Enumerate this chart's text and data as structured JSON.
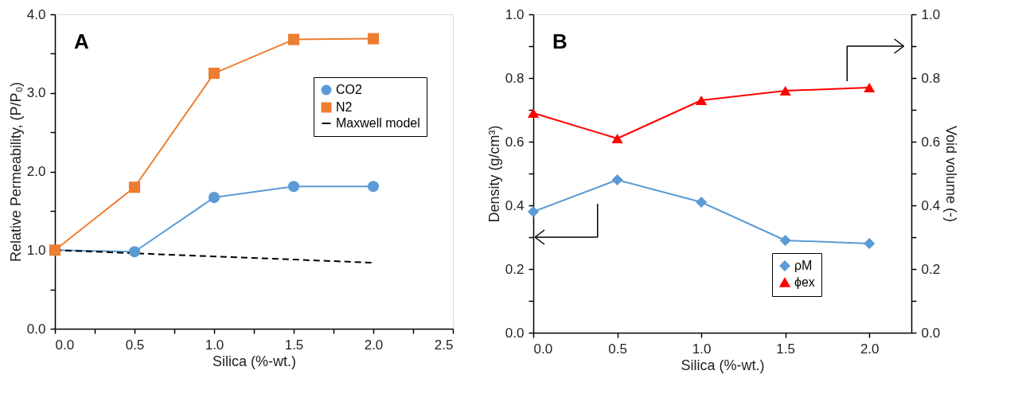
{
  "chart_data": [
    {
      "type": "line",
      "xlabel": "Silica (%-wt.)",
      "ylabel": "Relative Permeability, (P/P₀)",
      "annotations": [
        "A"
      ],
      "xlim": [
        0,
        2.5
      ],
      "xticks": [
        {
          "value": 0,
          "label": "0.0"
        },
        {
          "value": 0.25,
          "label": null
        },
        {
          "value": 0.5,
          "label": "0.5"
        },
        {
          "value": 0.75,
          "label": null
        },
        {
          "value": 1,
          "label": "1.0"
        },
        {
          "value": 1.25,
          "label": null
        },
        {
          "value": 1.5,
          "label": "1.5"
        },
        {
          "value": 1.75,
          "label": null
        },
        {
          "value": 2,
          "label": "2.0"
        },
        {
          "value": 2.25,
          "label": null
        },
        {
          "value": 2.5,
          "label": "2.5"
        }
      ],
      "ylim": [
        0,
        4
      ],
      "yticks": [
        {
          "value": 0,
          "label": "0.0"
        },
        {
          "value": 0.5,
          "label": null
        },
        {
          "value": 1,
          "label": "1.0"
        },
        {
          "value": 1.5,
          "label": null
        },
        {
          "value": 2,
          "label": "2.0"
        },
        {
          "value": 2.5,
          "label": null
        },
        {
          "value": 3,
          "label": "3.0"
        },
        {
          "value": 3.5,
          "label": null
        },
        {
          "value": 4,
          "label": "4.0"
        }
      ],
      "x": [
        0,
        0.5,
        1,
        1.5,
        2
      ],
      "grid": false,
      "legend": "top right",
      "series": [
        {
          "name": "CO2",
          "color": "#5b9bd5",
          "marker": "circle",
          "line_style": "solid",
          "values": [
            1.0,
            0.98,
            1.67,
            1.81,
            1.81
          ]
        },
        {
          "name": "N2",
          "color": "#ed7d31",
          "marker": "square",
          "line_style": "solid",
          "values": [
            1.0,
            1.8,
            3.25,
            3.68,
            3.69
          ]
        },
        {
          "name": "Maxwell model",
          "color": "#000000",
          "marker": "none",
          "line_style": "dashed",
          "values": [
            1.0,
            0.96,
            0.92,
            0.88,
            0.84
          ]
        }
      ]
    },
    {
      "type": "line",
      "xlabel": "Silica (%-wt.)",
      "ylabel": "Density (g/cm³)",
      "y2label": "Void volume (-)",
      "annotations": [
        "B"
      ],
      "xlim": [
        0,
        2.25
      ],
      "xticks": [
        {
          "value": 0,
          "label": "0.0"
        },
        {
          "value": 0.5,
          "label": "0.5"
        },
        {
          "value": 1,
          "label": "1.0"
        },
        {
          "value": 1.5,
          "label": "1.5"
        },
        {
          "value": 2,
          "label": "2.0"
        }
      ],
      "ylim": [
        0,
        1
      ],
      "yticks": [
        {
          "value": 0,
          "label": "0.0"
        },
        {
          "value": 0.1,
          "label": null
        },
        {
          "value": 0.2,
          "label": "0.2"
        },
        {
          "value": 0.3,
          "label": null
        },
        {
          "value": 0.4,
          "label": "0.4"
        },
        {
          "value": 0.5,
          "label": null
        },
        {
          "value": 0.6,
          "label": "0.6"
        },
        {
          "value": 0.7,
          "label": null
        },
        {
          "value": 0.8,
          "label": "0.8"
        },
        {
          "value": 0.9,
          "label": null
        },
        {
          "value": 1,
          "label": "1.0"
        }
      ],
      "y2lim": [
        0,
        1
      ],
      "y2ticks": [
        {
          "value": 0,
          "label": "0.0"
        },
        {
          "value": 0.1,
          "label": null
        },
        {
          "value": 0.2,
          "label": "0.2"
        },
        {
          "value": 0.3,
          "label": null
        },
        {
          "value": 0.4,
          "label": "0.4"
        },
        {
          "value": 0.5,
          "label": null
        },
        {
          "value": 0.6,
          "label": "0.6"
        },
        {
          "value": 0.7,
          "label": null
        },
        {
          "value": 0.8,
          "label": "0.8"
        },
        {
          "value": 0.9,
          "label": null
        },
        {
          "value": 1,
          "label": "1.0"
        }
      ],
      "x": [
        0,
        0.5,
        1,
        1.5,
        2
      ],
      "grid": false,
      "legend": "bottom right",
      "series": [
        {
          "name": "ρM",
          "color": "#5b9bd5",
          "marker": "diamond",
          "line_style": "solid",
          "axis": "y",
          "values": [
            0.38,
            0.48,
            0.41,
            0.29,
            0.28
          ]
        },
        {
          "name": "ϕex",
          "color": "#ff0000",
          "marker": "triangle",
          "line_style": "solid",
          "axis": "y2",
          "values": [
            0.69,
            0.61,
            0.73,
            0.76,
            0.77
          ]
        }
      ]
    }
  ]
}
